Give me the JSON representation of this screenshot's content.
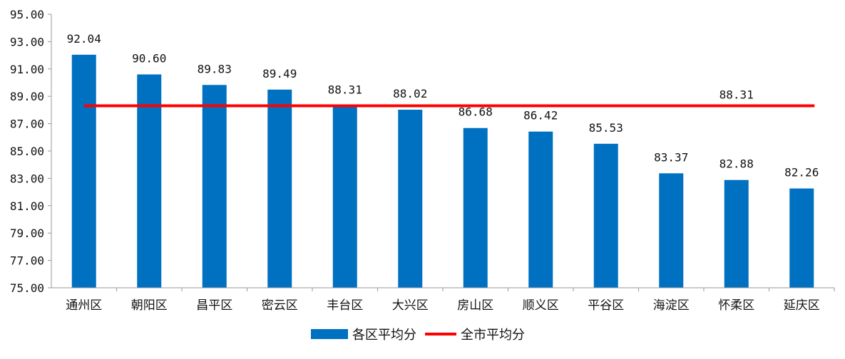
{
  "chart_data": {
    "type": "bar",
    "title": "",
    "xlabel": "",
    "ylabel": "",
    "ylim": [
      75,
      95
    ],
    "yticks": [
      "75.00",
      "77.00",
      "79.00",
      "81.00",
      "83.00",
      "85.00",
      "87.00",
      "89.00",
      "91.00",
      "93.00",
      "95.00"
    ],
    "categories": [
      "通州区",
      "朝阳区",
      "昌平区",
      "密云区",
      "丰台区",
      "大兴区",
      "房山区",
      "顺义区",
      "平谷区",
      "海淀区",
      "怀柔区",
      "延庆区"
    ],
    "series": [
      {
        "name": "各区平均分",
        "kind": "bar",
        "color": "#0070C0",
        "values": [
          92.04,
          90.6,
          89.83,
          89.49,
          88.31,
          88.02,
          86.68,
          86.42,
          85.53,
          83.37,
          82.88,
          82.26
        ],
        "labels": [
          "92.04",
          "90.60",
          "89.83",
          "89.49",
          "88.31",
          "88.02",
          "86.68",
          "86.42",
          "85.53",
          "83.37",
          "82.88",
          "82.26"
        ]
      },
      {
        "name": "全市平均分",
        "kind": "line",
        "color": "#FF0000",
        "value": 88.31,
        "label": "88.31"
      }
    ],
    "grid": false,
    "legend": "bottom"
  }
}
